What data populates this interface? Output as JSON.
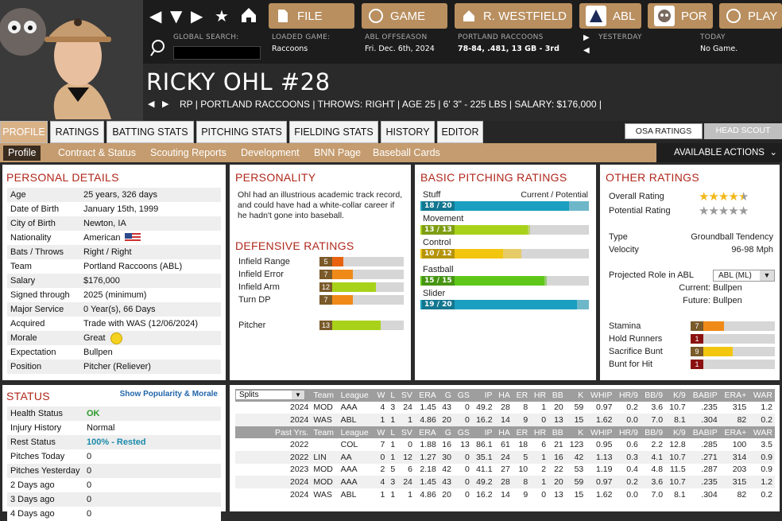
{
  "nav": {
    "file": "FILE",
    "game": "GAME",
    "manager": "R. WESTFIELD",
    "league": "ABL",
    "team": "POR",
    "play": "PLAY"
  },
  "info": {
    "search_label": "GLOBAL SEARCH:",
    "loaded_label": "LOADED GAME:",
    "loaded_value": "Raccoons",
    "season_label": "ABL OFFSEASON",
    "season_value": "Fri. Dec. 6th, 2024",
    "team_label": "PORTLAND RACCOONS",
    "team_value": "78-84, .481, 13 GB - 3rd",
    "yesterday_label": "YESTERDAY",
    "today_label": "TODAY",
    "today_value": "No Game."
  },
  "player": {
    "name": "RICKY OHL  #28",
    "line": "RP | PORTLAND RACCOONS  |  THROWS: RIGHT  |  AGE 25  |  6' 3\" - 225 LBS  |  SALARY: $176,000  |"
  },
  "tabs": [
    "PROFILE",
    "RATINGS",
    "BATTING STATS",
    "PITCHING STATS",
    "FIELDING STATS",
    "HISTORY",
    "EDITOR"
  ],
  "rating_toggle": {
    "osa": "OSA RATINGS",
    "scout": "HEAD SCOUT"
  },
  "subtabs": [
    "Profile",
    "Contract & Status",
    "Scouting Reports",
    "Development",
    "BNN Page",
    "Baseball Cards"
  ],
  "actions_label": "AVAILABLE ACTIONS",
  "personal": {
    "title": "PERSONAL DETAILS",
    "rows": [
      {
        "k": "Age",
        "v": "25 years, 326 days"
      },
      {
        "k": "Date of Birth",
        "v": "January 15th, 1999"
      },
      {
        "k": "City of Birth",
        "v": "Newton, IA"
      },
      {
        "k": "Nationality",
        "v": "American"
      },
      {
        "k": "Bats / Throws",
        "v": "Right / Right"
      },
      {
        "k": "Team",
        "v": "Portland Raccoons (ABL)"
      },
      {
        "k": "Salary",
        "v": "$176,000"
      },
      {
        "k": "Signed through",
        "v": "2025 (minimum)"
      },
      {
        "k": "Major Service",
        "v": "0 Year(s), 66 Days"
      },
      {
        "k": "Acquired",
        "v": "Trade with WAS (12/06/2024)"
      },
      {
        "k": "Morale",
        "v": "Great"
      },
      {
        "k": "Expectation",
        "v": "Bullpen"
      },
      {
        "k": "Position",
        "v": "Pitcher (Reliever)"
      }
    ]
  },
  "personality": {
    "title": "PERSONALITY",
    "text": "Ohl had an illustrious academic track record, and could have had a white-collar career if he hadn't gone into baseball."
  },
  "defense": {
    "title": "DEFENSIVE RATINGS",
    "rows": [
      {
        "k": "Infield Range",
        "v": "5",
        "pct": 0.05,
        "color": "#e8620f"
      },
      {
        "k": "Infield Error",
        "v": "7",
        "pct": 0.07,
        "color": "#ef8a18"
      },
      {
        "k": "Infield Arm",
        "v": "12",
        "pct": 0.12,
        "color": "#a8d21a"
      },
      {
        "k": "Turn DP",
        "v": "7",
        "pct": 0.07,
        "color": "#ef8a18"
      }
    ],
    "pitcher": {
      "k": "Pitcher",
      "v": "13",
      "pct": 0.13,
      "color": "#a8d21a"
    }
  },
  "basic": {
    "title": "BASIC PITCHING RATINGS",
    "header": "Current / Potential",
    "rows": [
      {
        "k": "Stuff",
        "v": "18 / 20",
        "cur": 18,
        "pot": 20,
        "color": "#1a9fc0"
      },
      {
        "k": "Movement",
        "v": "13 / 13",
        "cur": 13,
        "pot": 13,
        "color": "#a8d21a"
      },
      {
        "k": "Control",
        "v": "10 / 12",
        "cur": 10,
        "pot": 12,
        "color": "#f2c50f"
      },
      {
        "k": "Fastball",
        "v": "15 / 15",
        "cur": 15,
        "pot": 15,
        "color": "#5fc71a"
      },
      {
        "k": "Slider",
        "v": "19 / 20",
        "cur": 19,
        "pot": 20,
        "color": "#1a9fc0"
      }
    ]
  },
  "other": {
    "title": "OTHER RATINGS",
    "overall_label": "Overall Rating",
    "overall_stars": 4.5,
    "potential_label": "Potential Rating",
    "potential_stars": 0,
    "type_label": "Type",
    "type_value": "Groundball Tendency",
    "velo_label": "Velocity",
    "velo_value": "96-98 Mph",
    "role_label": "Projected Role in ABL",
    "role_select": "ABL (ML)",
    "current_label": "Current:",
    "current_value": "Bullpen",
    "future_label": "Future:",
    "future_value": "Bullpen",
    "rows": [
      {
        "k": "Stamina",
        "v": "7",
        "pct": 0.07,
        "color": "#ef8a18"
      },
      {
        "k": "Hold Runners",
        "v": "1",
        "pct": 0.01,
        "color": "#8b1010"
      },
      {
        "k": "Sacrifice Bunt",
        "v": "9",
        "pct": 0.09,
        "color": "#f2c50f"
      },
      {
        "k": "Bunt for Hit",
        "v": "1",
        "pct": 0.01,
        "color": "#8b1010"
      }
    ]
  },
  "status": {
    "title": "STATUS",
    "link": "Show Popularity & Morale",
    "rows": [
      {
        "k": "Health Status",
        "v": "OK"
      },
      {
        "k": "Injury History",
        "v": "Normal"
      },
      {
        "k": "Rest Status",
        "v": "100% - Rested"
      },
      {
        "k": "Pitches Today",
        "v": "0"
      },
      {
        "k": "Pitches Yesterday",
        "v": "0"
      },
      {
        "k": "2 Days ago",
        "v": "0"
      },
      {
        "k": "3 Days ago",
        "v": "0"
      },
      {
        "k": "4 Days ago",
        "v": "0"
      }
    ]
  },
  "stats": {
    "split_select": "Splits",
    "cols": [
      "Team",
      "League",
      "W",
      "L",
      "SV",
      "ERA",
      "G",
      "GS",
      "IP",
      "HA",
      "ER",
      "HR",
      "BB",
      "K",
      "WHIP",
      "HR/9",
      "BB/9",
      "K/9",
      "BABIP",
      "ERA+",
      "WAR"
    ],
    "splits": [
      [
        "2024",
        "MOD",
        "AAA",
        "4",
        "3",
        "24",
        "1.45",
        "43",
        "0",
        "49.2",
        "28",
        "8",
        "1",
        "20",
        "59",
        "0.97",
        "0.2",
        "3.6",
        "10.7",
        ".235",
        "315",
        "1.2"
      ],
      [
        "2024",
        "WAS",
        "ABL",
        "1",
        "1",
        "1",
        "4.86",
        "20",
        "0",
        "16.2",
        "14",
        "9",
        "0",
        "13",
        "15",
        "1.62",
        "0.0",
        "7.0",
        "8.1",
        ".304",
        "82",
        "0.2"
      ]
    ],
    "past_label": "Past Yrs.",
    "past": [
      [
        "2022",
        "",
        "COL",
        "7",
        "1",
        "0",
        "1.88",
        "16",
        "13",
        "86.1",
        "61",
        "18",
        "6",
        "21",
        "123",
        "0.95",
        "0.6",
        "2.2",
        "12.8",
        ".285",
        "100",
        "3.5"
      ],
      [
        "2022",
        "LIN",
        "AA",
        "0",
        "1",
        "12",
        "1.27",
        "30",
        "0",
        "35.1",
        "24",
        "5",
        "1",
        "16",
        "42",
        "1.13",
        "0.3",
        "4.1",
        "10.7",
        ".271",
        "314",
        "0.9"
      ],
      [
        "2023",
        "MOD",
        "AAA",
        "2",
        "5",
        "6",
        "2.18",
        "42",
        "0",
        "41.1",
        "27",
        "10",
        "2",
        "22",
        "53",
        "1.19",
        "0.4",
        "4.8",
        "11.5",
        ".287",
        "203",
        "0.9"
      ],
      [
        "2024",
        "MOD",
        "AAA",
        "4",
        "3",
        "24",
        "1.45",
        "43",
        "0",
        "49.2",
        "28",
        "8",
        "1",
        "20",
        "59",
        "0.97",
        "0.2",
        "3.6",
        "10.7",
        ".235",
        "315",
        "1.2"
      ],
      [
        "2024",
        "WAS",
        "ABL",
        "1",
        "1",
        "1",
        "4.86",
        "20",
        "0",
        "16.2",
        "14",
        "9",
        "0",
        "13",
        "15",
        "1.62",
        "0.0",
        "7.0",
        "8.1",
        ".304",
        "82",
        "0.2"
      ]
    ]
  }
}
